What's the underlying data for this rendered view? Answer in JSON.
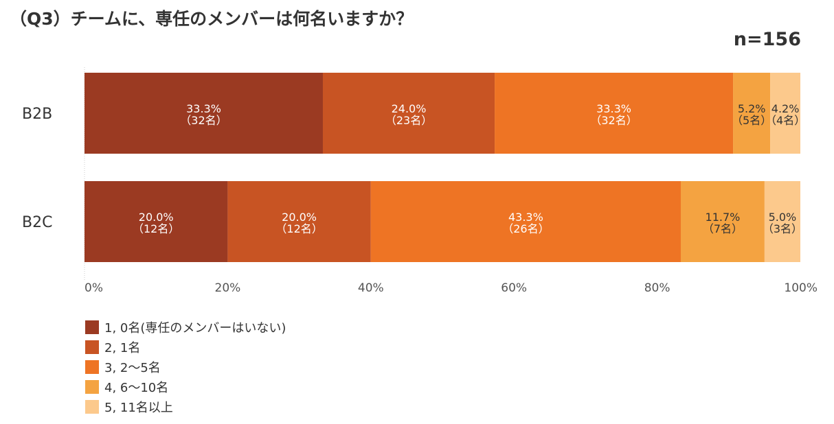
{
  "chart_data": {
    "type": "bar",
    "orientation": "horizontal",
    "stacked": true,
    "title": "（Q3）チームに、専任のメンバーは何名いますか？",
    "sample_size": "n=156",
    "categories": [
      "B2B",
      "B2C"
    ],
    "series": [
      {
        "name": "1, 0名(専任のメンバーはいない)",
        "color": "#9b3a22",
        "values": [
          33.3,
          20.0
        ],
        "counts": [
          "（32名）",
          "（12名）"
        ]
      },
      {
        "name": "2, 1名",
        "color": "#c85423",
        "values": [
          24.0,
          20.0
        ],
        "counts": [
          "（23名）",
          "（12名）"
        ]
      },
      {
        "name": "3, 2～5名",
        "color": "#ee7424",
        "values": [
          33.3,
          43.3
        ],
        "counts": [
          "（32名）",
          "（26名）"
        ]
      },
      {
        "name": "4, 6～10名",
        "color": "#f4a341",
        "values": [
          5.2,
          11.7
        ],
        "counts": [
          "（5名）",
          "（7名）"
        ]
      },
      {
        "name": "5, 11名以上",
        "color": "#fcc98c",
        "values": [
          4.2,
          5.0
        ],
        "counts": [
          "（4名）",
          "（3名）"
        ]
      }
    ],
    "xlim": [
      0,
      100
    ],
    "x_ticks": [
      "0%",
      "20%",
      "40%",
      "60%",
      "80%",
      "100%"
    ],
    "grid": false,
    "legend_position": "bottom-left"
  }
}
